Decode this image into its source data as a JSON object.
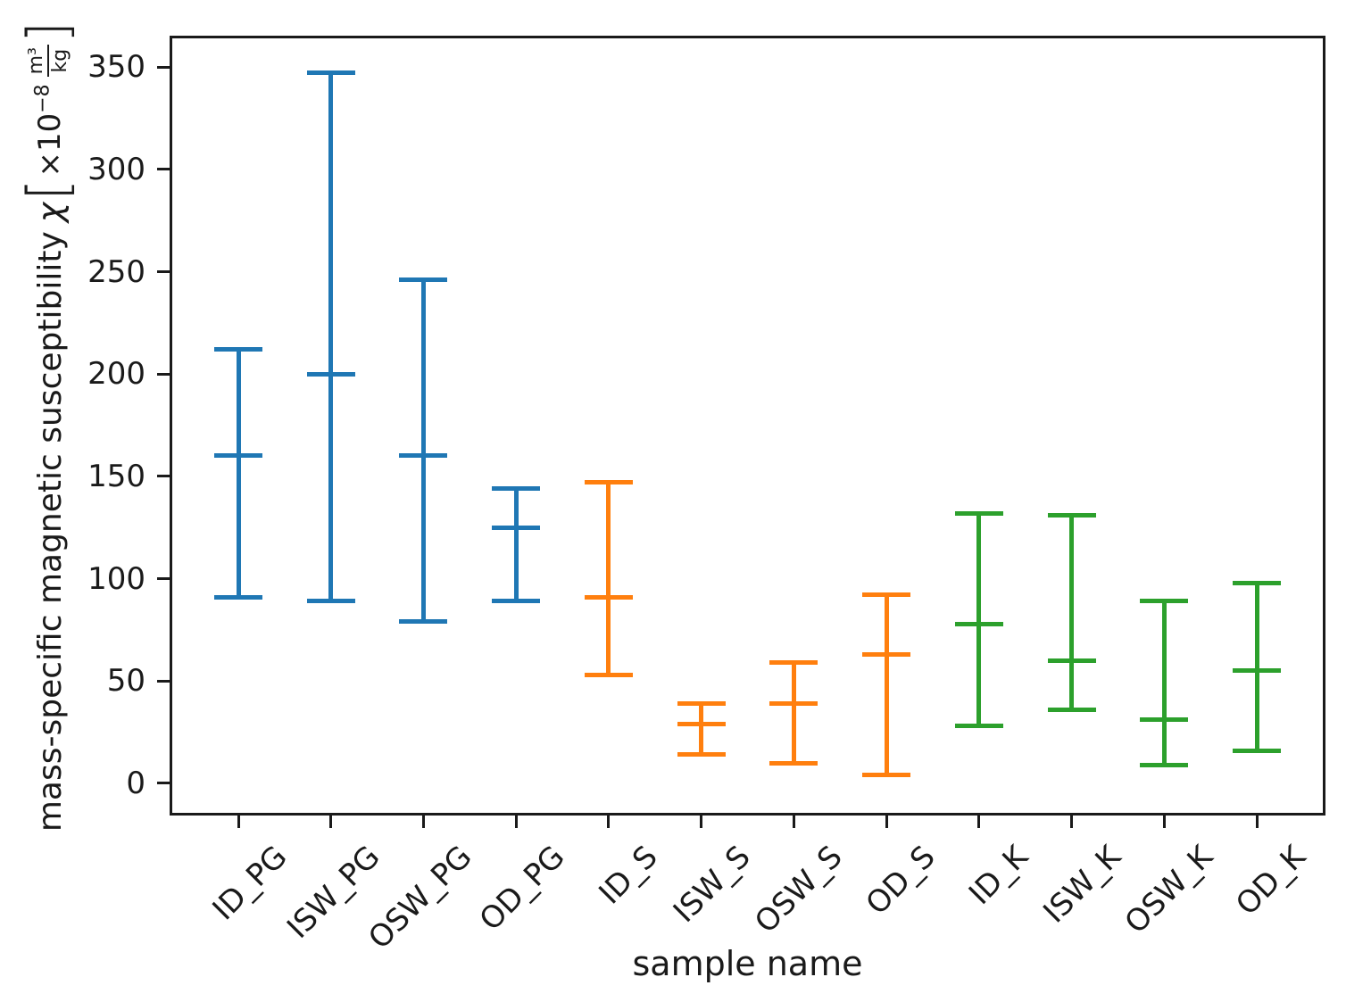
{
  "figure": {
    "background": "#ffffff",
    "text_color": "#1a1a1a"
  },
  "axes": {
    "xlabel": "sample name",
    "ylabel": {
      "prefix": "mass-specific magnetic susceptibility",
      "chi": "χ",
      "open_bracket": "[",
      "multiplier": "×10",
      "exponent": "−8",
      "frac_num": "m³",
      "frac_den": "kg",
      "close_bracket": "]"
    }
  },
  "chart_data": {
    "type": "errorbar",
    "title": "",
    "xlabel": "sample name",
    "ylabel": "mass-specific magnetic susceptibility χ [×10⁻⁸ m³/kg]",
    "categories": [
      "ID_PG",
      "ISW_PG",
      "OSW_PG",
      "OD_PG",
      "ID_S",
      "ISW_S",
      "OSW_S",
      "OD_S",
      "ID_K",
      "ISW_K",
      "OSW_K",
      "OD_K"
    ],
    "yticks": [
      0,
      50,
      100,
      150,
      200,
      250,
      300,
      350
    ],
    "ylim": [
      -14.4,
      364
    ],
    "grid": false,
    "legend": false,
    "groups": [
      {
        "name": "PG",
        "color": "#1f77b4"
      },
      {
        "name": "S",
        "color": "#ff7f0e"
      },
      {
        "name": "K",
        "color": "#2ca02c"
      }
    ],
    "points": [
      {
        "label": "ID_PG",
        "group": "PG",
        "center": 160,
        "upper": 212,
        "lower": 91
      },
      {
        "label": "ISW_PG",
        "group": "PG",
        "center": 200,
        "upper": 347,
        "lower": 89
      },
      {
        "label": "OSW_PG",
        "group": "PG",
        "center": 160,
        "upper": 246,
        "lower": 79
      },
      {
        "label": "OD_PG",
        "group": "PG",
        "center": 125,
        "upper": 144,
        "lower": 89
      },
      {
        "label": "ID_S",
        "group": "S",
        "center": 91,
        "upper": 147,
        "lower": 53
      },
      {
        "label": "ISW_S",
        "group": "S",
        "center": 29,
        "upper": 39,
        "lower": 14
      },
      {
        "label": "OSW_S",
        "group": "S",
        "center": 39,
        "upper": 59,
        "lower": 10
      },
      {
        "label": "OD_S",
        "group": "S",
        "center": 63,
        "upper": 92,
        "lower": 4
      },
      {
        "label": "ID_K",
        "group": "K",
        "center": 78,
        "upper": 132,
        "lower": 28
      },
      {
        "label": "ISW_K",
        "group": "K",
        "center": 60,
        "upper": 131,
        "lower": 36
      },
      {
        "label": "OSW_K",
        "group": "K",
        "center": 31,
        "upper": 89,
        "lower": 9
      },
      {
        "label": "OD_K",
        "group": "K",
        "center": 55,
        "upper": 98,
        "lower": 16
      }
    ]
  }
}
